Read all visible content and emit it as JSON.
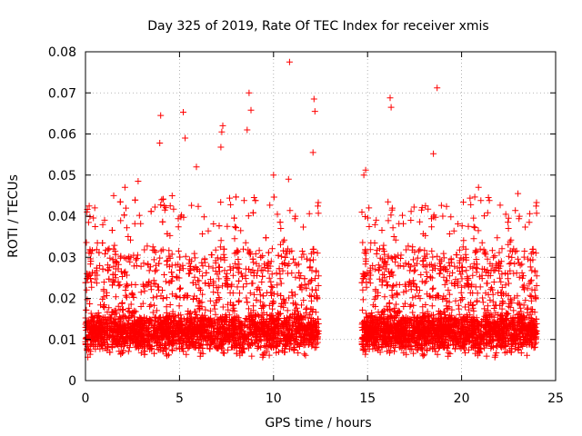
{
  "chart_data": {
    "type": "scatter",
    "title": "Day 325 of 2019, Rate Of TEC Index for receiver xmis",
    "xlabel": "GPS time / hours",
    "ylabel": "ROTI / TECUs",
    "xlim": [
      0,
      25
    ],
    "ylim": [
      0,
      0.08
    ],
    "xticks": [
      0,
      5,
      10,
      15,
      20,
      25
    ],
    "yticks": [
      0,
      0.01,
      0.02,
      0.03,
      0.04,
      0.05,
      0.06,
      0.07,
      0.08
    ],
    "grid": true,
    "marker": "+",
    "marker_color": "#ff0000",
    "data_gap_hours": [
      12.5,
      14.6
    ],
    "segments": [
      {
        "x_start": 0.0,
        "x_end": 12.4,
        "typical_y": [
          0.005,
          0.02
        ]
      },
      {
        "x_start": 14.7,
        "x_end": 24.0,
        "typical_y": [
          0.005,
          0.02
        ]
      }
    ],
    "notable_points": [
      {
        "x": 10.85,
        "y": 0.0775
      },
      {
        "x": 18.7,
        "y": 0.0712
      },
      {
        "x": 8.7,
        "y": 0.07
      },
      {
        "x": 16.2,
        "y": 0.0688
      },
      {
        "x": 12.15,
        "y": 0.0685
      },
      {
        "x": 16.25,
        "y": 0.0665
      },
      {
        "x": 12.2,
        "y": 0.0655
      },
      {
        "x": 5.2,
        "y": 0.0653
      },
      {
        "x": 8.8,
        "y": 0.0658
      },
      {
        "x": 4.0,
        "y": 0.0645
      },
      {
        "x": 7.3,
        "y": 0.062
      },
      {
        "x": 8.6,
        "y": 0.061
      },
      {
        "x": 7.25,
        "y": 0.0605
      },
      {
        "x": 5.3,
        "y": 0.059
      },
      {
        "x": 3.95,
        "y": 0.0578
      },
      {
        "x": 7.2,
        "y": 0.0568
      },
      {
        "x": 12.1,
        "y": 0.0555
      },
      {
        "x": 18.5,
        "y": 0.0552
      },
      {
        "x": 5.9,
        "y": 0.052
      },
      {
        "x": 14.9,
        "y": 0.0512
      },
      {
        "x": 14.8,
        "y": 0.05
      },
      {
        "x": 10.0,
        "y": 0.05
      },
      {
        "x": 10.8,
        "y": 0.049
      },
      {
        "x": 2.8,
        "y": 0.0485
      },
      {
        "x": 2.1,
        "y": 0.047
      },
      {
        "x": 20.9,
        "y": 0.047
      },
      {
        "x": 1.5,
        "y": 0.045
      },
      {
        "x": 23.0,
        "y": 0.0455
      },
      {
        "x": 4.05,
        "y": 0.044
      },
      {
        "x": 0.2,
        "y": 0.0425
      },
      {
        "x": 16.3,
        "y": 0.0415
      },
      {
        "x": 14.7,
        "y": 0.041
      },
      {
        "x": 19.0,
        "y": 0.04
      },
      {
        "x": 17.3,
        "y": 0.039
      },
      {
        "x": 22.5,
        "y": 0.0395
      },
      {
        "x": 23.6,
        "y": 0.0385
      }
    ]
  }
}
